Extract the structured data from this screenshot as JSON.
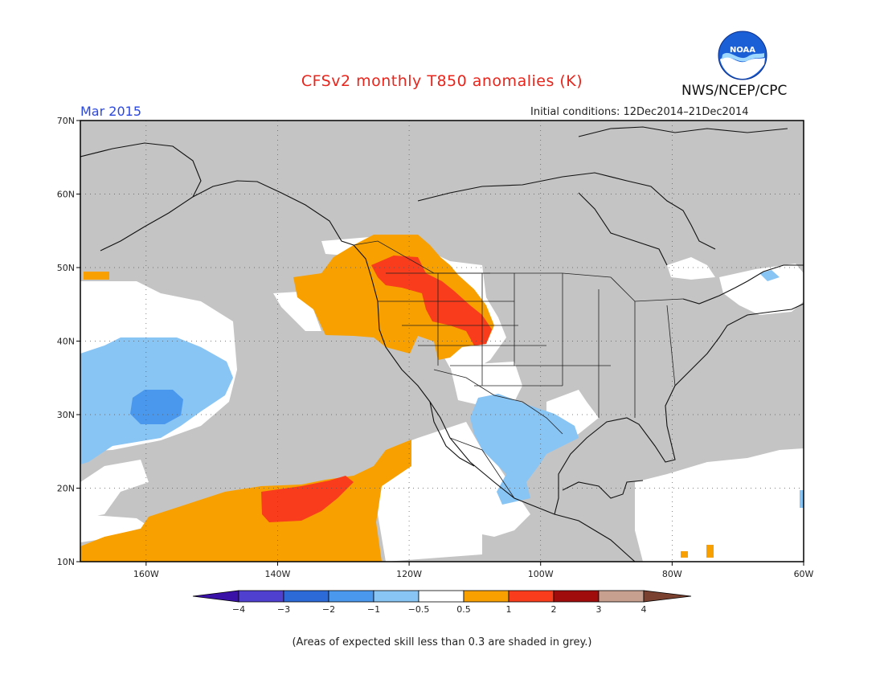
{
  "header": {
    "title": "CFSv2 monthly T850 anomalies (K)",
    "period": "Mar 2015",
    "initial_conditions": "Initial conditions: 12Dec2014–21Dec2014",
    "agency": "NWS/NCEP/CPC",
    "logo_text": "NOAA"
  },
  "map": {
    "lat_ticks": [
      "70N",
      "60N",
      "50N",
      "40N",
      "30N",
      "20N",
      "10N"
    ],
    "lon_ticks": [
      "160W",
      "140W",
      "120W",
      "100W",
      "80W",
      "60W"
    ],
    "extent": {
      "lon": [
        -170,
        -60
      ],
      "lat": [
        10,
        70
      ]
    }
  },
  "colorbar": {
    "labels": [
      "−4",
      "−3",
      "−2",
      "−1",
      "−0.5",
      "0.5",
      "1",
      "2",
      "3",
      "4"
    ],
    "colors": [
      "#3a12a8",
      "#5040d0",
      "#2c6ad8",
      "#4a98ee",
      "#88c4f4",
      "#ffffff",
      "#f8a000",
      "#f83c1c",
      "#a00c0c",
      "#c8a090",
      "#7a4030"
    ]
  },
  "footnote": "(Areas of expected skill less than 0.3 are shaded in grey.)"
}
